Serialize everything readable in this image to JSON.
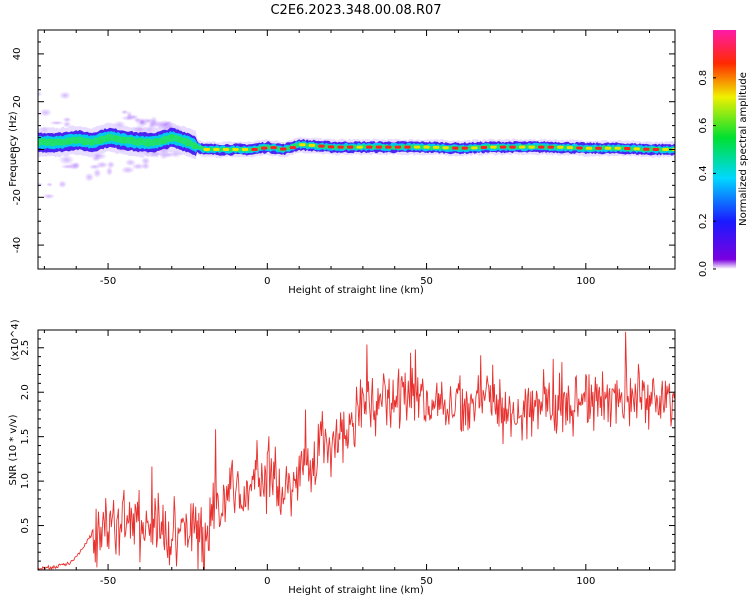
{
  "title": "C2E6.2023.348.00.08.R07",
  "colors": {
    "snr_line": "#e8312e",
    "axis": "#000000",
    "background": "#ffffff"
  },
  "chart_data": [
    {
      "type": "heatmap",
      "title": "C2E6.2023.348.00.08.R07",
      "xlabel": "Height of straight line (km)",
      "ylabel": "Frequency (Hz)",
      "xlim": [
        -72,
        128
      ],
      "ylim": [
        -50,
        50
      ],
      "xticks": [
        -50,
        0,
        50,
        100
      ],
      "yticks": [
        -40,
        -20,
        0,
        20,
        40
      ],
      "colormap": "rainbow (purple-blue-cyan-green-yellow-red-magenta)",
      "colorbar": {
        "label": "Normalized spectral amplitude",
        "range": [
          0.0,
          1.0
        ],
        "ticks": [
          "0.0",
          "0.2",
          "0.4",
          "0.6",
          "0.8"
        ]
      },
      "ridge": {
        "description": "Spectral energy ridge near 0 Hz; wider spread below -25 km, narrow line above -20 km",
        "x": [
          -70,
          -65,
          -60,
          -55,
          -50,
          -45,
          -40,
          -35,
          -30,
          -25,
          -20,
          -15,
          -10,
          -5,
          0,
          5,
          10,
          20,
          30,
          40,
          50,
          60,
          70,
          80,
          90,
          100,
          110,
          120,
          128
        ],
        "y": [
          3,
          3,
          4,
          3,
          5,
          4,
          3,
          3,
          5,
          3,
          0,
          0,
          0,
          0,
          1,
          0,
          2,
          1,
          1,
          1,
          1,
          0.5,
          1,
          1,
          1,
          0.5,
          0.5,
          0,
          0
        ]
      }
    },
    {
      "type": "line",
      "xlabel": "Height of straight line (km)",
      "ylabel": "SNR (10 * v/v)",
      "ylabel_scale": "(x10^4)",
      "xlim": [
        -72,
        128
      ],
      "ylim": [
        0,
        2.7
      ],
      "xticks": [
        -50,
        0,
        50,
        100
      ],
      "yticks": [
        0.5,
        1.0,
        1.5,
        2.0,
        2.5
      ],
      "x": [
        -72,
        -67,
        -62,
        -60,
        -57,
        -55,
        -52,
        -50,
        -47,
        -45,
        -42,
        -40,
        -37,
        -35,
        -32,
        -30,
        -27,
        -25,
        -22,
        -20,
        -17,
        -15,
        -12,
        -10,
        -7,
        -5,
        -2,
        0,
        2,
        5,
        7,
        10,
        12,
        15,
        17,
        20,
        22,
        25,
        30,
        35,
        40,
        45,
        50,
        55,
        60,
        65,
        70,
        75,
        80,
        85,
        90,
        95,
        100,
        105,
        110,
        115,
        120,
        125,
        128
      ],
      "values": [
        0.02,
        0.03,
        0.08,
        0.15,
        0.3,
        0.4,
        0.45,
        0.5,
        0.45,
        0.55,
        0.5,
        0.5,
        0.5,
        0.55,
        0.4,
        0.4,
        0.35,
        0.55,
        0.4,
        0.2,
        0.8,
        0.65,
        0.9,
        1.0,
        0.8,
        1.05,
        1.0,
        0.9,
        1.0,
        0.85,
        0.9,
        1.05,
        1.2,
        1.1,
        1.5,
        1.3,
        1.5,
        1.6,
        1.8,
        1.9,
        1.85,
        1.95,
        1.9,
        1.85,
        1.85,
        1.9,
        1.95,
        1.75,
        1.8,
        1.85,
        1.9,
        1.85,
        1.9,
        1.95,
        1.95,
        2.0,
        1.95,
        1.9,
        1.9
      ]
    }
  ]
}
